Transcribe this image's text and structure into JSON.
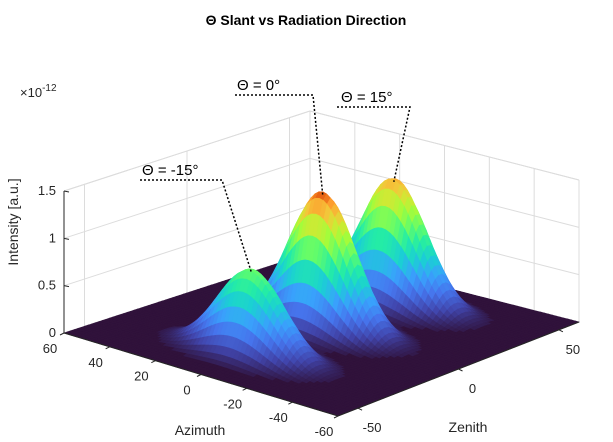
{
  "chart_data": {
    "type": "surface",
    "title": "Θ Slant vs Radiation Direction",
    "zlabel": "Intensity [a.u.]",
    "xlabel": "Azimuth",
    "ylabel": "Zenith",
    "z_exponent_label": "×10",
    "z_exponent_power": "-12",
    "z_ticks": [
      "0",
      "0.5",
      "1",
      "1.5"
    ],
    "z_tick_values": [
      0,
      0.5,
      1,
      1.5
    ],
    "zlim": [
      0,
      1.5
    ],
    "azimuth_ticks": [
      "60",
      "40",
      "20",
      "0",
      "-20",
      "-40",
      "-60"
    ],
    "azimuth_tick_values": [
      60,
      40,
      20,
      0,
      -20,
      -40,
      -60
    ],
    "zenith_ticks": [
      "-50",
      "0",
      "50"
    ],
    "zenith_tick_values": [
      -50,
      0,
      50
    ],
    "xlim": [
      -60,
      60
    ],
    "ylim": [
      -60,
      60
    ],
    "colormap": "turbo",
    "floor_color": "#30123b",
    "grid": true,
    "peaks": [
      {
        "label": "Θ = -15°",
        "azimuth": 0,
        "zenith": -35,
        "peak": 0.92
      },
      {
        "label": "Θ = 0°",
        "azimuth": 0,
        "zenith": 0,
        "peak": 1.47
      },
      {
        "label": "Θ = 15°",
        "azimuth": 0,
        "zenith": 35,
        "peak": 1.35
      }
    ]
  }
}
